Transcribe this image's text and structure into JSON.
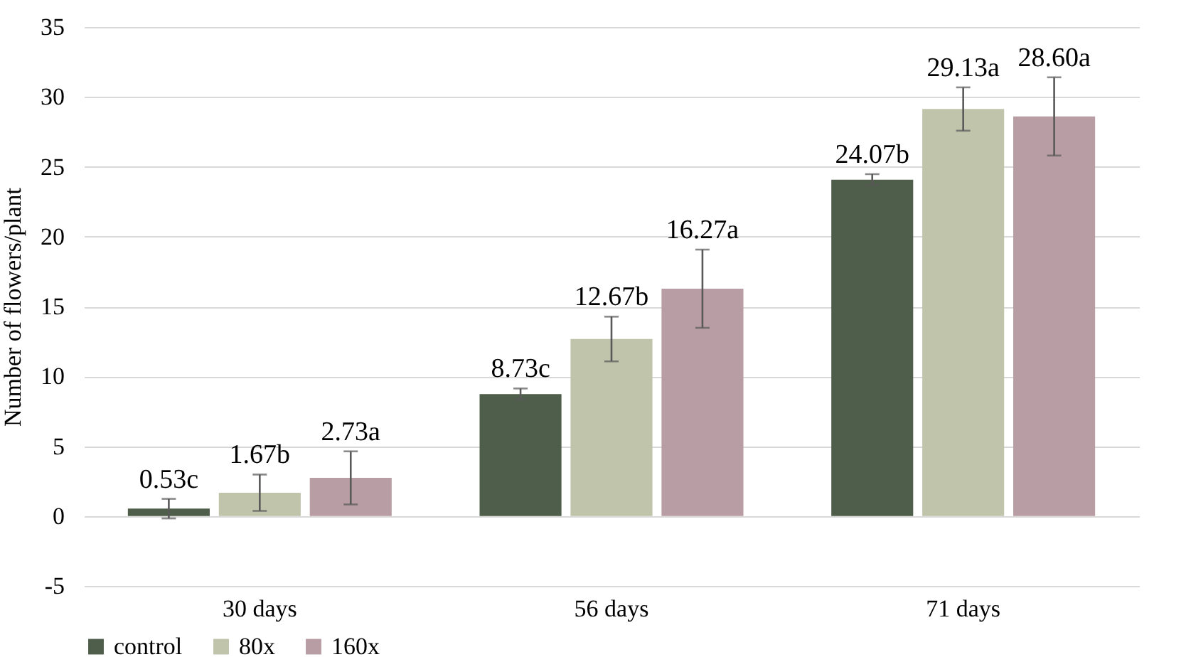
{
  "chart_data": {
    "type": "bar",
    "ylabel": "Number of flowers/plant",
    "categories": [
      "30 days",
      "56 days",
      "71 days"
    ],
    "series": [
      {
        "name": "control",
        "color": "#4f5e4a",
        "values": [
          0.53,
          8.73,
          24.07
        ],
        "errors": [
          0.7,
          0.4,
          0.4
        ],
        "value_labels": [
          "0.53c",
          "8.73c",
          "24.07b"
        ]
      },
      {
        "name": "80x",
        "color": "#c0c4ab",
        "values": [
          1.67,
          12.67,
          29.13
        ],
        "errors": [
          1.3,
          1.6,
          1.55
        ],
        "value_labels": [
          "1.67b",
          "12.67b",
          "29.13a"
        ]
      },
      {
        "name": "160x",
        "color": "#b89ea4",
        "values": [
          2.73,
          16.27,
          28.6
        ],
        "errors": [
          1.9,
          2.8,
          2.8
        ],
        "value_labels": [
          "2.73a",
          "16.27a",
          "28.60a"
        ]
      }
    ],
    "ylim": [
      -5,
      35
    ],
    "yticks": [
      -5,
      0,
      5,
      10,
      15,
      20,
      25,
      30,
      35
    ],
    "grid": "y",
    "legend": "bottom"
  }
}
